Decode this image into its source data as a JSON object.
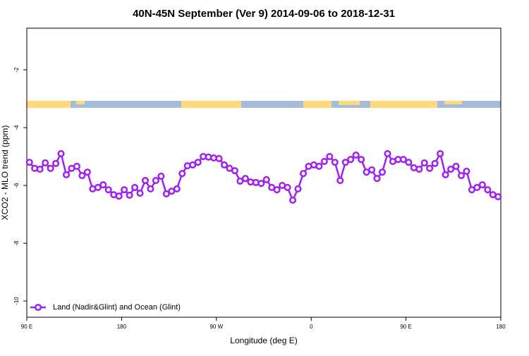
{
  "chart_data": {
    "type": "line",
    "title": "40N-45N September (Ver 9)   2014-09-06 to 2018-12-31",
    "x_label": "Longitude (deg E)",
    "y_label": "XCO2 - MLO trend (ppm)",
    "x": [
      92.5,
      97.5,
      102.5,
      107.5,
      112.5,
      117.5,
      122.5,
      127.5,
      132.5,
      137.5,
      142.5,
      147.5,
      152.5,
      157.5,
      162.5,
      167.5,
      172.5,
      177.5,
      182.5,
      187.5,
      192.5,
      197.5,
      202.5,
      207.5,
      212.5,
      217.5,
      222.5,
      227.5,
      232.5,
      237.5,
      242.5,
      247.5,
      252.5,
      257.5,
      262.5,
      267.5,
      272.5,
      277.5,
      282.5,
      287.5,
      292.5,
      297.5,
      302.5,
      307.5,
      312.5,
      317.5,
      322.5,
      327.5,
      332.5,
      337.5,
      342.5,
      347.5,
      352.5,
      357.5,
      362.5,
      367.5,
      372.5,
      377.5,
      382.5,
      387.5,
      392.5,
      397.5,
      402.5,
      407.5,
      412.5,
      417.5,
      422.5,
      427.5,
      432.5,
      437.5,
      442.5,
      447.5,
      452.5,
      457.5,
      462.5,
      467.5,
      472.5,
      477.5,
      482.5,
      487.5,
      492.5,
      497.5,
      502.5,
      507.5,
      512.5,
      517.5,
      522.5,
      527.5,
      532.5,
      537.5
    ],
    "series": [
      {
        "name": "Land (Nadir&Glint) and Ocean (Glint)",
        "color": "#a020f0",
        "values": [
          -5.2,
          -5.41,
          -5.44,
          -5.22,
          -5.41,
          -5.24,
          -4.9,
          -5.63,
          -5.41,
          -5.34,
          -5.66,
          -5.54,
          -6.12,
          -6.07,
          -5.98,
          -6.15,
          -6.32,
          -6.37,
          -6.15,
          -6.34,
          -6.07,
          -6.27,
          -5.83,
          -6.12,
          -5.83,
          -5.68,
          -6.29,
          -6.2,
          -6.12,
          -5.59,
          -5.32,
          -5.29,
          -5.2,
          -5.0,
          -5.02,
          -5.05,
          -5.07,
          -5.29,
          -5.41,
          -5.49,
          -5.85,
          -5.76,
          -5.88,
          -5.9,
          -5.93,
          -5.8,
          -6.07,
          -6.15,
          -6.0,
          -6.07,
          -6.51,
          -6.12,
          -5.59,
          -5.34,
          -5.29,
          -5.34,
          -5.17,
          -5.0,
          -5.2,
          -5.83,
          -5.2,
          -5.1,
          -4.95,
          -5.1,
          -5.54,
          -5.46,
          -5.76,
          -5.54,
          -4.9,
          -5.17,
          -5.1,
          -5.1,
          -5.2,
          -5.39,
          -5.44,
          -5.22,
          -5.41,
          -5.24,
          -4.9,
          -5.63,
          -5.44,
          -5.34,
          -5.66,
          -5.51,
          -6.15,
          -6.07,
          -5.98,
          -6.15,
          -6.32,
          -6.39
        ]
      }
    ],
    "xlim": [
      90,
      540
    ],
    "xticks": [
      {
        "value": 90,
        "label": "90 E"
      },
      {
        "value": 180,
        "label": "180"
      },
      {
        "value": 270,
        "label": "90 W"
      },
      {
        "value": 360,
        "label": "0"
      },
      {
        "value": 450,
        "label": "90 E"
      },
      {
        "value": 540,
        "label": "180"
      }
    ],
    "ylim": [
      -10.56,
      -0.56
    ],
    "yticks": [
      -10,
      -8,
      -6,
      -4,
      -2
    ],
    "legend": "bottom-left"
  }
}
